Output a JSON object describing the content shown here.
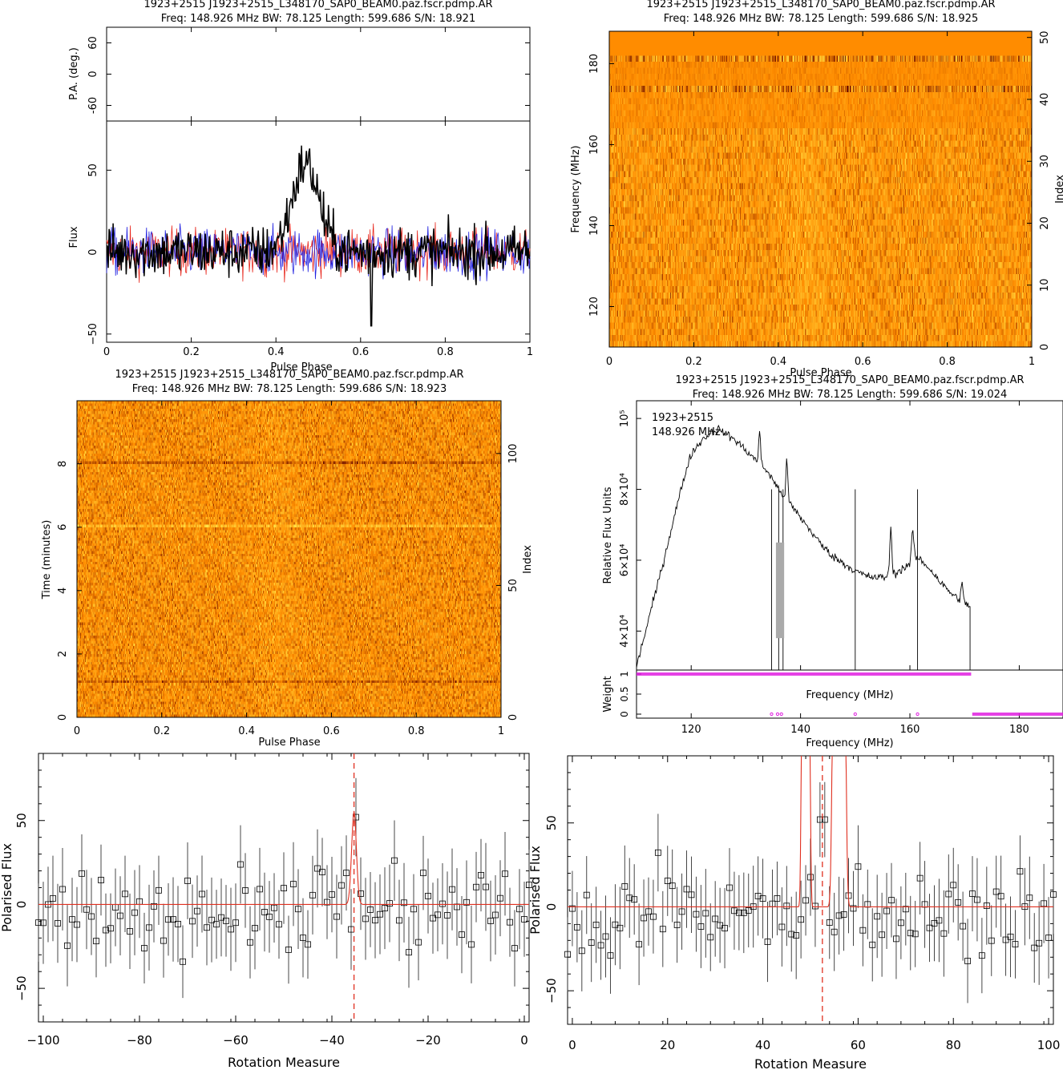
{
  "panels": {
    "profile": {
      "title": "1923+2515  J1923+2515_L348170_SAP0_BEAM0.paz.fscr.pdmp.AR",
      "subtitle": "Freq: 148.926 MHz BW: 78.125 Length: 599.686 S/N: 18.921"
    },
    "freq_phase": {
      "title": "1923+2515  J1923+2515_L348170_SAP0_BEAM0.paz.fscr.pdmp.AR",
      "subtitle": "Freq: 148.926 MHz BW: 78.125 Length: 599.686 S/N: 18.925"
    },
    "time_phase": {
      "title": "1923+2515  J1923+2515_L348170_SAP0_BEAM0.paz.fscr.pdmp.AR",
      "subtitle": "Freq: 148.926 MHz BW: 78.125 Length: 599.686 S/N: 18.923"
    },
    "bandpass": {
      "title": "1923+2515  J1923+2515_L348170_SAP0_BEAM0.paz.fscr.pdmp.AR",
      "subtitle": "Freq: 148.926 MHz BW: 78.125 Length: 599.686 S/N: 19.024",
      "annot_source": "1923+2515",
      "annot_freq": "148.926 MHz"
    }
  },
  "colors": {
    "stokes_i": "#000000",
    "linear": "#e8261c",
    "circular": "#2020e0",
    "weights": "#e020e0",
    "rm_fit": "#e03020",
    "heat_low": "#5a0000",
    "heat_mid": "#ff8c00",
    "heat_high": "#ffee50",
    "errorbar": "#333333",
    "bandpass_flagged": "#aaaaaa"
  },
  "chart_data": [
    {
      "id": "pa-profile",
      "type": "line",
      "ylabel": "P.A. (deg.)",
      "ylim": [
        -90,
        90
      ],
      "y_ticks": [
        -60,
        0,
        60
      ],
      "x_ticks": [
        0,
        0.2,
        0.4,
        0.6,
        0.8,
        1
      ],
      "x_tick_labels": [
        "0",
        "0.2",
        "0.4",
        "0.6",
        "0.8",
        "1"
      ]
    },
    {
      "id": "pulse-profile",
      "type": "line",
      "xlabel": "Pulse Phase",
      "ylabel": "Flux",
      "xlim": [
        0,
        1
      ],
      "ylim": [
        -55,
        80
      ],
      "x_ticks": [
        0,
        0.2,
        0.4,
        0.6,
        0.8,
        1
      ],
      "x_tick_labels": [
        "0",
        "0.2",
        "0.4",
        "0.6",
        "0.8",
        "1"
      ],
      "y_ticks": [
        -50,
        0,
        50
      ],
      "y_tick_labels": [
        "−50",
        "0",
        "50"
      ],
      "series": [
        {
          "color": "#000000",
          "peak_phase": 0.47,
          "peak_value": 75,
          "noise_rms": 10
        },
        {
          "color": "#e8261c",
          "noise_rms": 9
        },
        {
          "color": "#2020e0",
          "noise_rms": 9
        }
      ],
      "min_value": -45
    },
    {
      "id": "freq-phase",
      "type": "heatmap",
      "xlabel": "Pulse Phase",
      "ylabel": "Frequency (MHz)",
      "right_label": "Index",
      "xlim": [
        0,
        1
      ],
      "ylim": [
        110,
        188
      ],
      "x_ticks": [
        0,
        0.2,
        0.4,
        0.6,
        0.8,
        1
      ],
      "x_tick_labels": [
        "0",
        "0.2",
        "0.4",
        "0.6",
        "0.8",
        "1"
      ],
      "y_ticks": [
        120,
        140,
        160,
        180
      ],
      "right_ticks": [
        0,
        10,
        20,
        30,
        40,
        50
      ],
      "index_range": [
        0,
        51
      ]
    },
    {
      "id": "time-phase",
      "type": "heatmap",
      "xlabel": "Pulse Phase",
      "ylabel": "Time (minutes)",
      "right_label": "Index",
      "xlim": [
        0,
        1
      ],
      "ylim": [
        0,
        9.99
      ],
      "x_ticks": [
        0,
        0.2,
        0.4,
        0.6,
        0.8,
        1
      ],
      "x_tick_labels": [
        "0",
        "0.2",
        "0.4",
        "0.6",
        "0.8",
        "1"
      ],
      "y_ticks": [
        0,
        2,
        4,
        6,
        8
      ],
      "right_ticks": [
        0,
        50,
        100
      ],
      "index_range": [
        0,
        120
      ]
    },
    {
      "id": "bandpass",
      "type": "line",
      "xlabel": "Frequency (MHz)",
      "ylabel": "Relative Flux Units",
      "xlim": [
        110,
        188
      ],
      "ylim": [
        29000,
        105000
      ],
      "x_ticks": [
        120,
        140,
        160,
        180
      ],
      "y_ticks": [
        40000,
        60000,
        80000,
        100000
      ],
      "y_tick_labels": [
        "4×10⁴",
        "6×10⁴",
        "8×10⁴",
        "10⁵"
      ],
      "x": [
        110,
        111,
        113,
        115,
        117,
        119,
        120,
        122,
        124,
        125,
        126,
        128,
        130,
        132,
        134,
        136,
        138,
        140,
        142,
        144,
        146,
        148,
        150,
        152,
        154,
        156,
        157,
        158,
        160,
        161,
        162,
        164,
        166,
        168,
        170,
        171
      ],
      "values": [
        30000,
        36000,
        48000,
        60000,
        73000,
        85000,
        90000,
        94000,
        96500,
        97000,
        96000,
        94000,
        91000,
        88000,
        85000,
        80000,
        76000,
        72000,
        68000,
        64000,
        61000,
        59000,
        57000,
        55500,
        55000,
        55500,
        56000,
        57000,
        59000,
        61000,
        60000,
        57000,
        53000,
        50000,
        48000,
        47000
      ],
      "spikes": [
        {
          "x": 132.5,
          "y": 97000
        },
        {
          "x": 137.5,
          "y": 89000
        },
        {
          "x": 156.5,
          "y": 71000
        },
        {
          "x": 160.5,
          "y": 70000
        },
        {
          "x": 169.5,
          "y": 54000
        }
      ],
      "dropouts": [
        134.7,
        136.0,
        136.8,
        150.0,
        161.4
      ]
    },
    {
      "id": "weights",
      "type": "scatter",
      "xlabel": "Frequency (MHz)",
      "ylabel": "Weight",
      "xlim": [
        110,
        188
      ],
      "ylim": [
        -0.1,
        1.1
      ],
      "x_ticks": [
        120,
        140,
        160,
        180
      ],
      "y_ticks": [
        0,
        0.5,
        1
      ],
      "ones_range": [
        110,
        171.2
      ],
      "zeros_range": [
        171.4,
        188
      ],
      "zero_points": [
        134.7,
        135.8,
        136.5,
        150.0,
        161.4
      ]
    },
    {
      "id": "rm-negative",
      "type": "scatter",
      "xlabel": "Rotation Measure",
      "ylabel": "Polarised Flux",
      "xlim": [
        -101,
        1
      ],
      "ylim": [
        -70,
        90
      ],
      "x_ticks": [
        -100,
        -80,
        -60,
        -40,
        -20,
        0
      ],
      "x_tick_labels": [
        "−100",
        "−80",
        "−60",
        "−40",
        "−20",
        "0"
      ],
      "y_ticks": [
        -50,
        0,
        50
      ],
      "y_tick_labels": [
        "−50",
        "0",
        "50"
      ],
      "peak_rm": -35.4,
      "fit_amplitude": 55,
      "fit_width": 0.7,
      "error": 23
    },
    {
      "id": "rm-positive",
      "type": "scatter",
      "xlabel": "Rotation Measure",
      "ylabel": "Polarised Flux",
      "xlim": [
        -1,
        101
      ],
      "ylim": [
        -70,
        90
      ],
      "x_ticks": [
        0,
        20,
        40,
        60,
        80,
        100
      ],
      "x_tick_labels": [
        "0",
        "20",
        "40",
        "60",
        "80",
        "100"
      ],
      "y_ticks": [
        -50,
        0,
        50
      ],
      "y_tick_labels": [
        "−50",
        "0",
        "50"
      ],
      "peak_rm": 52.5,
      "fit_amplitude": 300,
      "fit_width": 1.7,
      "error": 23
    }
  ]
}
